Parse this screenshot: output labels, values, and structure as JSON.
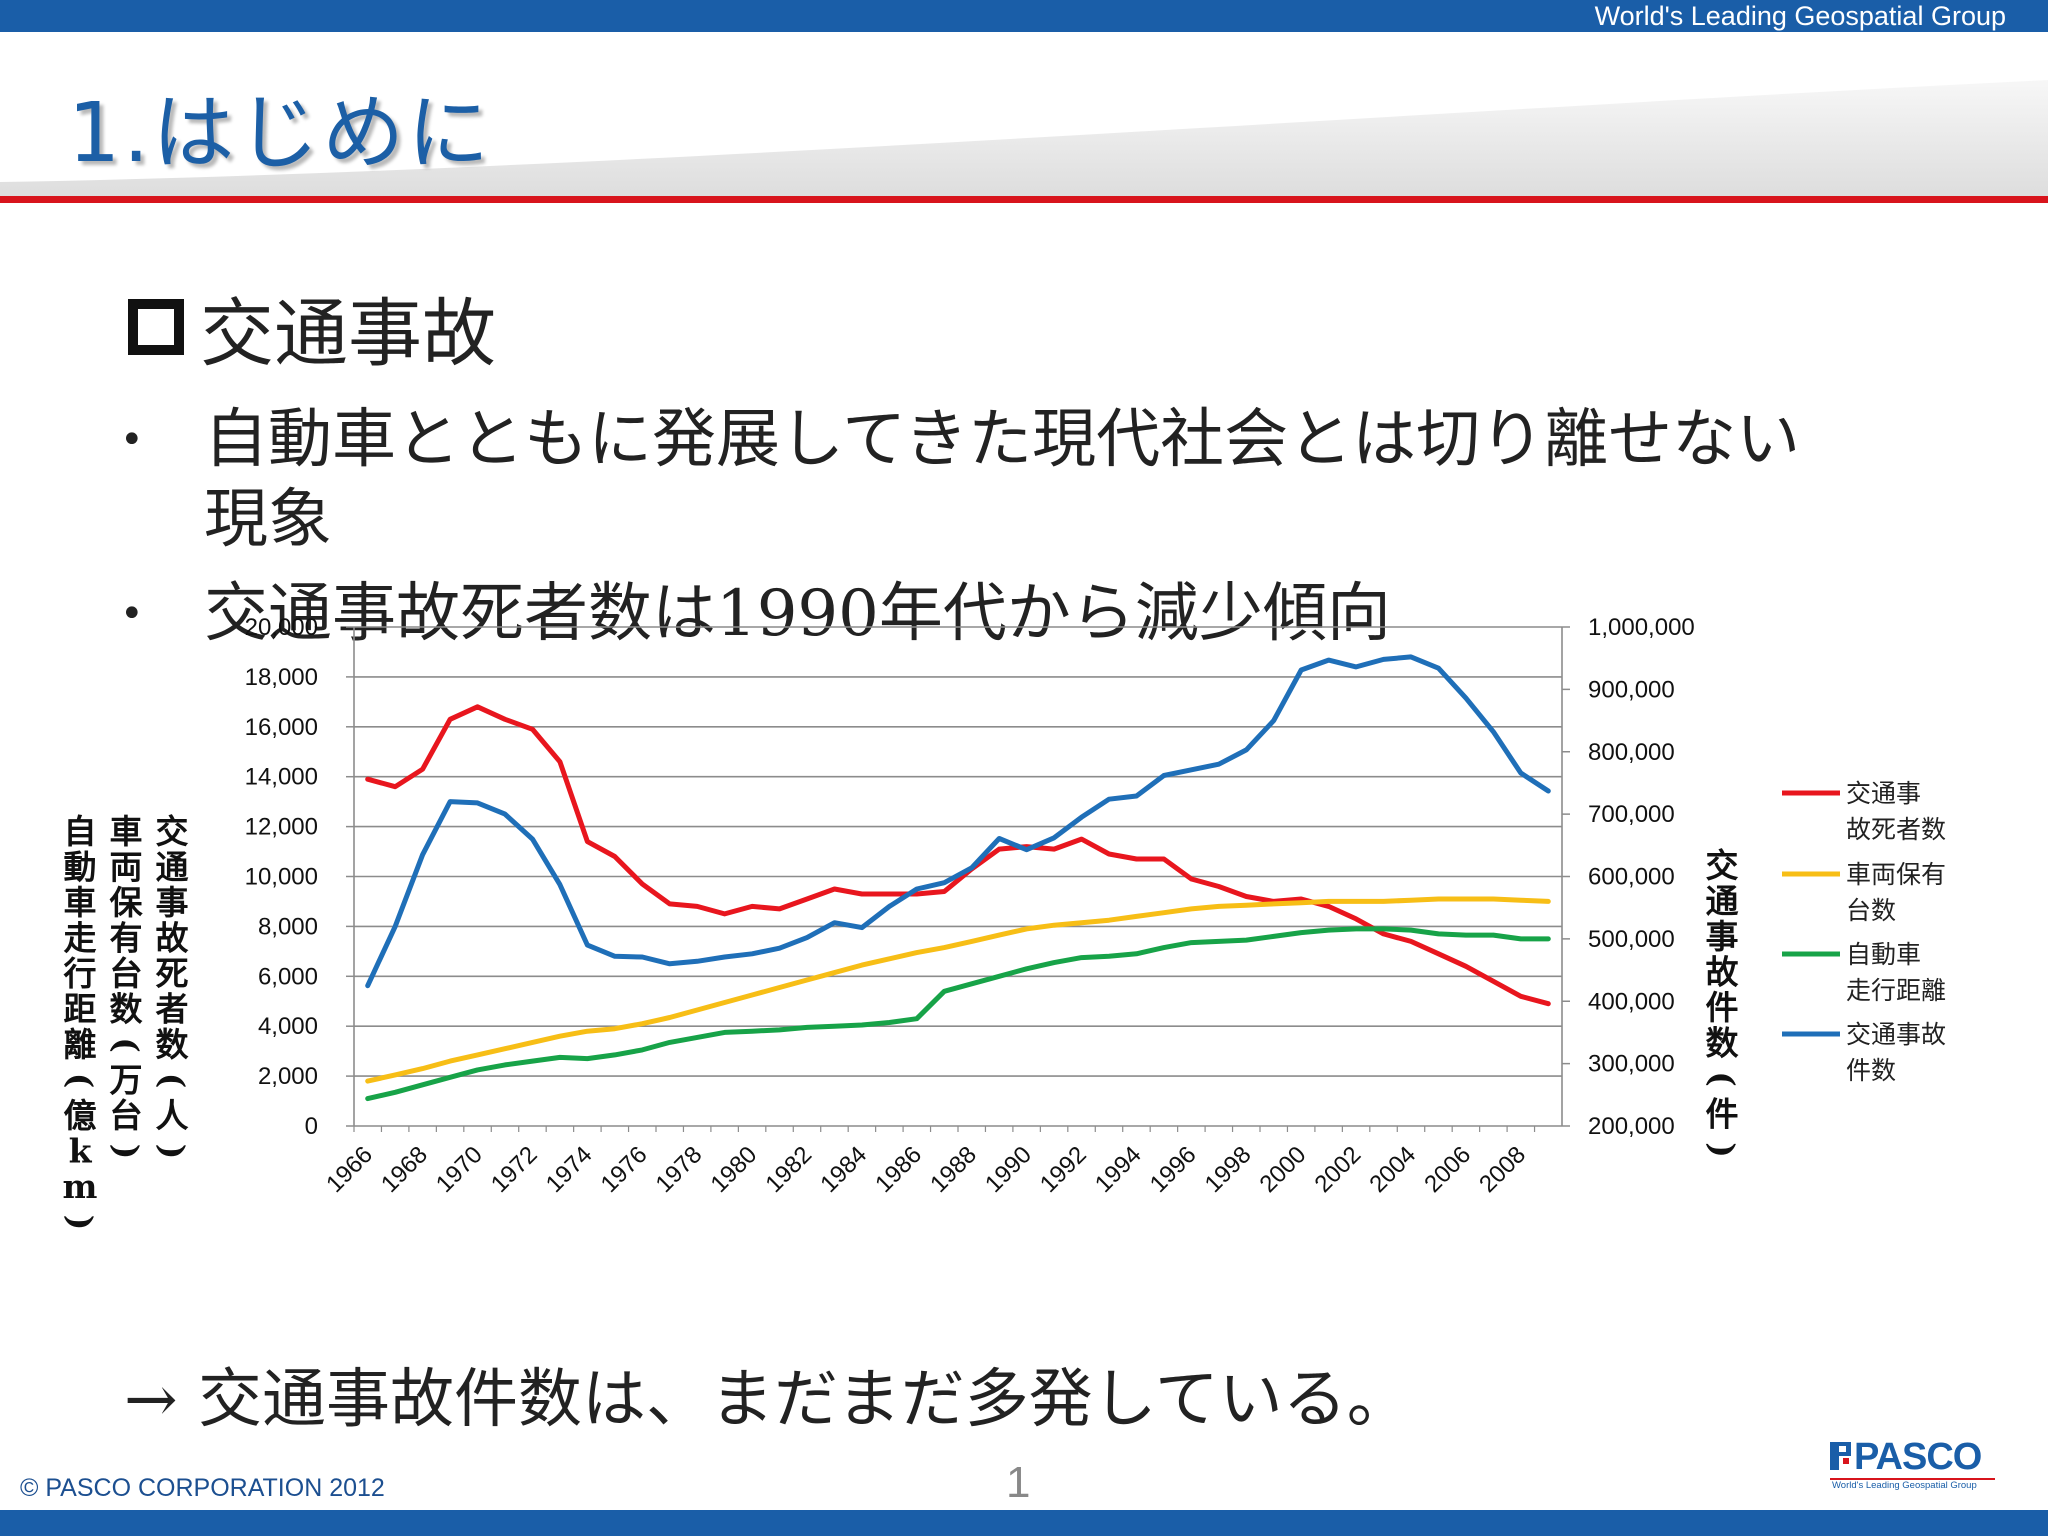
{
  "header": {
    "tagline": "World's Leading Geospatial Group",
    "title": "1.はじめに"
  },
  "section": {
    "heading": "交通事故",
    "bullets": [
      {
        "line1": "自動車とともに発展してきた現代社会とは切り離せない",
        "line2": "現象"
      },
      {
        "line1": "交通事故死者数は1990年代から減少傾向"
      }
    ],
    "conclusion": "→ 交通事故件数は、まだまだ多発している。"
  },
  "footer": {
    "copyright": "© PASCO CORPORATION 2012",
    "page_number": "1",
    "logo_text": "PASCO",
    "logo_tagline": "World's Leading Geospatial Group"
  },
  "colors": {
    "brand_blue": "#1a5ea8",
    "brand_red": "#d8141c",
    "fatalities": "#e8161e",
    "vehicles": "#f7be16",
    "distance": "#17a348",
    "accidents": "#1f6fb8"
  },
  "icons": [
    "checkbox-icon",
    "bullet-dot-icon",
    "arrow-right-icon",
    "pasco-logo-icon"
  ],
  "chart_data": {
    "type": "line",
    "x": [
      1966,
      1967,
      1968,
      1969,
      1970,
      1971,
      1972,
      1973,
      1974,
      1975,
      1976,
      1977,
      1978,
      1979,
      1980,
      1981,
      1982,
      1983,
      1984,
      1985,
      1986,
      1987,
      1988,
      1989,
      1990,
      1991,
      1992,
      1993,
      1994,
      1995,
      1996,
      1997,
      1998,
      1999,
      2000,
      2001,
      2002,
      2003,
      2004,
      2005,
      2006,
      2007,
      2008,
      2009
    ],
    "x_tick_labels": [
      "1966",
      "1968",
      "1970",
      "1972",
      "1974",
      "1976",
      "1978",
      "1980",
      "1982",
      "1984",
      "1986",
      "1988",
      "1990",
      "1992",
      "1994",
      "1996",
      "1998",
      "2000",
      "2002",
      "2004",
      "2006",
      "2008"
    ],
    "y_left_ticks": [
      "0",
      "2,000",
      "4,000",
      "6,000",
      "8,000",
      "10,000",
      "12,000",
      "14,000",
      "16,000",
      "18,000",
      "20,000"
    ],
    "y_right_ticks": [
      "200,000",
      "300,000",
      "400,000",
      "500,000",
      "600,000",
      "700,000",
      "800,000",
      "900,000",
      "1,000,000"
    ],
    "ylim_left": [
      0,
      20000
    ],
    "ylim_right": [
      200000,
      1000000
    ],
    "ylabel_left": [
      "交通事故死者数(人)",
      "車両保有台数(万台)",
      "自動車走行距離(億km)"
    ],
    "ylabel_right": "交通事故件数(件)",
    "grid": true,
    "legend_position": "right",
    "series": [
      {
        "name": "交通事故死者数",
        "axis": "left",
        "color": "#e8161e",
        "values": [
          13900,
          13600,
          14300,
          16300,
          16800,
          16300,
          15900,
          14600,
          11400,
          10800,
          9700,
          8900,
          8800,
          8500,
          8800,
          8700,
          9100,
          9500,
          9300,
          9300,
          9300,
          9400,
          10300,
          11100,
          11200,
          11100,
          11500,
          10900,
          10700,
          10700,
          9900,
          9600,
          9200,
          9000,
          9100,
          8800,
          8300,
          7700,
          7400,
          6900,
          6400,
          5800,
          5200,
          4900
        ]
      },
      {
        "name": "車両保有台数",
        "axis": "left",
        "color": "#f7be16",
        "values": [
          1800,
          2050,
          2300,
          2600,
          2850,
          3100,
          3350,
          3600,
          3800,
          3900,
          4100,
          4350,
          4650,
          4950,
          5250,
          5550,
          5850,
          6150,
          6450,
          6700,
          6950,
          7150,
          7400,
          7650,
          7900,
          8050,
          8150,
          8250,
          8400,
          8550,
          8700,
          8800,
          8850,
          8900,
          8950,
          9000,
          9000,
          9000,
          9050,
          9100,
          9100,
          9100,
          9050,
          9000
        ]
      },
      {
        "name": "自動車走行距離",
        "axis": "left",
        "color": "#17a348",
        "values": [
          1100,
          1350,
          1650,
          1950,
          2250,
          2450,
          2600,
          2750,
          2700,
          2850,
          3050,
          3350,
          3550,
          3750,
          3800,
          3850,
          3950,
          4000,
          4050,
          4150,
          4300,
          5400,
          5700,
          6000,
          6300,
          6550,
          6750,
          6800,
          6900,
          7150,
          7350,
          7400,
          7450,
          7600,
          7750,
          7850,
          7900,
          7900,
          7850,
          7700,
          7650,
          7650,
          7500,
          7500
        ]
      },
      {
        "name": "交通事故件数",
        "axis": "right",
        "color": "#1f6fb8",
        "values": [
          425000,
          520000,
          635000,
          720000,
          718000,
          700000,
          660000,
          587000,
          490000,
          472000,
          471000,
          460000,
          464000,
          471000,
          476000,
          485000,
          502000,
          526000,
          518000,
          552000,
          580000,
          590000,
          614000,
          661000,
          643000,
          662000,
          695000,
          724000,
          729000,
          762000,
          771000,
          780000,
          803000,
          850000,
          931000,
          947000,
          936000,
          948000,
          952000,
          934000,
          886000,
          832000,
          766000,
          737000
        ]
      }
    ]
  }
}
